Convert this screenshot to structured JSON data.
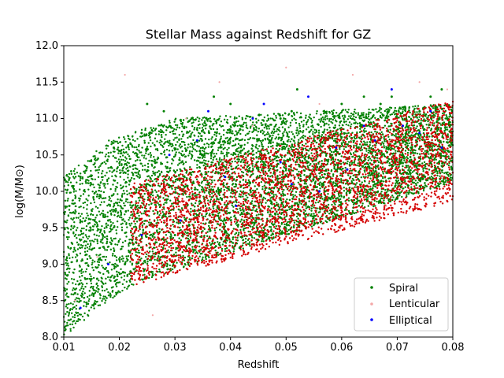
{
  "chart_data": {
    "type": "scatter",
    "title": "Stellar Mass against Redshift for GZ",
    "xlabel": "Redshift",
    "ylabel": "log(M/M⊙)",
    "xlim": [
      0.01,
      0.08
    ],
    "ylim": [
      8.0,
      12.0
    ],
    "x_ticks": [
      "0.01",
      "0.02",
      "0.03",
      "0.04",
      "0.05",
      "0.06",
      "0.07",
      "0.08"
    ],
    "y_ticks": [
      "8.0",
      "8.5",
      "9.0",
      "9.5",
      "10.0",
      "10.5",
      "11.0",
      "11.5",
      "12.0"
    ],
    "grid": false,
    "legend_position": "lower-right",
    "series": [
      {
        "name": "Spiral",
        "color": "#008000",
        "marker": "dot",
        "x": [
          0.012,
          0.015,
          0.018,
          0.021,
          0.024,
          0.027,
          0.03,
          0.033,
          0.036,
          0.039,
          0.042,
          0.045,
          0.048,
          0.051,
          0.054,
          0.057,
          0.06,
          0.063,
          0.066,
          0.069,
          0.072,
          0.075,
          0.078,
          0.013,
          0.019,
          0.025,
          0.031,
          0.037,
          0.043,
          0.049,
          0.055,
          0.061,
          0.067,
          0.073,
          0.079,
          0.016,
          0.022,
          0.028,
          0.034,
          0.04,
          0.046,
          0.052,
          0.058,
          0.064,
          0.07,
          0.076,
          0.011,
          0.023,
          0.035,
          0.047,
          0.059,
          0.071
        ],
        "y": [
          8.6,
          9.2,
          9.6,
          9.0,
          10.8,
          10.2,
          9.4,
          11.0,
          10.1,
          9.6,
          10.9,
          10.3,
          9.8,
          11.1,
          10.4,
          10.0,
          11.2,
          10.6,
          10.1,
          11.3,
          10.7,
          10.2,
          11.4,
          10.2,
          10.6,
          11.2,
          9.6,
          11.3,
          9.7,
          11.0,
          9.9,
          10.3,
          11.2,
          10.4,
          11.0,
          8.8,
          8.9,
          11.1,
          9.3,
          11.2,
          9.5,
          11.4,
          10.5,
          11.3,
          9.9,
          11.3,
          9.8,
          9.3,
          10.6,
          10.7,
          9.9,
          10.5
        ]
      },
      {
        "name": "Lenticular",
        "color": "#f4a8a8",
        "marker": "dot",
        "x": [
          0.012,
          0.016,
          0.021,
          0.026,
          0.032,
          0.038,
          0.044,
          0.05,
          0.056,
          0.062,
          0.068,
          0.074,
          0.079
        ],
        "y": [
          8.5,
          9.1,
          11.6,
          8.3,
          11.0,
          11.5,
          10.9,
          11.7,
          11.2,
          11.6,
          9.8,
          11.5,
          11.4
        ]
      },
      {
        "name": "Elliptical",
        "color": "#0000ff",
        "marker": "dot",
        "x": [
          0.013,
          0.018,
          0.024,
          0.029,
          0.034,
          0.039,
          0.044,
          0.049,
          0.054,
          0.059,
          0.064,
          0.069,
          0.074,
          0.078,
          0.031,
          0.041,
          0.051,
          0.061,
          0.071,
          0.036,
          0.046,
          0.056,
          0.066,
          0.076
        ],
        "y": [
          8.4,
          9.0,
          9.4,
          10.5,
          10.7,
          10.2,
          11.0,
          10.4,
          11.3,
          10.6,
          10.9,
          11.4,
          10.8,
          10.6,
          9.6,
          9.8,
          10.1,
          10.3,
          10.9,
          11.1,
          11.2,
          10.0,
          10.7,
          11.1
        ]
      }
    ]
  }
}
